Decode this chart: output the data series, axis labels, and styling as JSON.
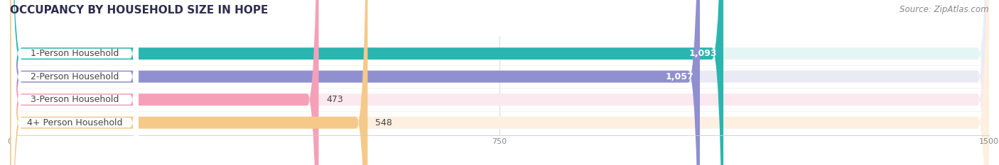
{
  "title": "OCCUPANCY BY HOUSEHOLD SIZE IN HOPE",
  "source": "Source: ZipAtlas.com",
  "categories": [
    "1-Person Household",
    "2-Person Household",
    "3-Person Household",
    "4+ Person Household"
  ],
  "values": [
    1093,
    1057,
    473,
    548
  ],
  "bar_colors": [
    "#2ab5b0",
    "#9090d0",
    "#f5a0b8",
    "#f5c98a"
  ],
  "bar_bg_colors": [
    "#e4f5f5",
    "#eaeaf5",
    "#fce8ef",
    "#fdf0e0"
  ],
  "value_labels": [
    "1,093",
    "1,057",
    "473",
    "548"
  ],
  "value_inside": [
    true,
    true,
    false,
    false
  ],
  "xlim": [
    0,
    1500
  ],
  "xticks": [
    0,
    750,
    1500
  ],
  "title_fontsize": 11,
  "source_fontsize": 8.5,
  "label_fontsize": 9,
  "value_fontsize": 9,
  "background_color": "#ffffff",
  "text_color_dark": "#444444",
  "text_color_light": "#ffffff"
}
